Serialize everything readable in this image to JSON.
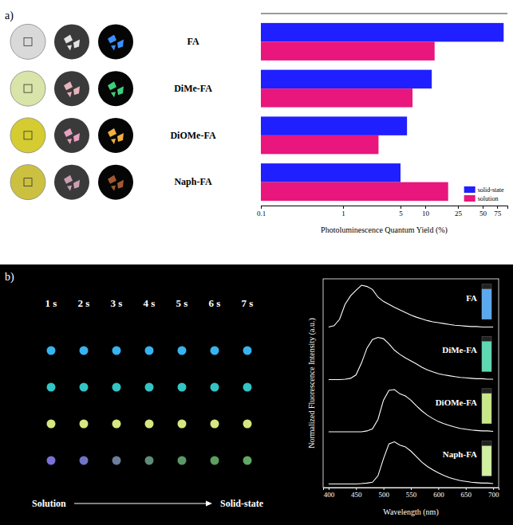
{
  "panel_labels": [
    "a)",
    "b)"
  ],
  "photos": [
    {
      "powder": "#d9d9d9",
      "daylight": "#e4e4e4",
      "emission": "#3d8fff"
    },
    {
      "powder": "#d8e4a8",
      "daylight": "#e6b4bc",
      "emission": "#3fcf7c"
    },
    {
      "powder": "#d4cc30",
      "daylight": "#e8a0c0",
      "emission": "#f0b040"
    },
    {
      "powder": "#ccc040",
      "daylight": "#c8a0b0",
      "emission": "#a05a30"
    }
  ],
  "dot_grid": {
    "times": [
      "1 s",
      "2 s",
      "3 s",
      "4 s",
      "5 s",
      "6 s",
      "7 s"
    ],
    "colors": [
      [
        "#35b4ef",
        "#35b4ef",
        "#35b4ef",
        "#35b4ef",
        "#35b4ef",
        "#35b4ef",
        "#35b4ef"
      ],
      [
        "#33c4c6",
        "#33c4c6",
        "#33c4c6",
        "#33c4c6",
        "#33c4c6",
        "#33c4c6",
        "#33c4c6"
      ],
      [
        "#d6e680",
        "#d6e680",
        "#d6e680",
        "#d6e680",
        "#d6e680",
        "#d6e680",
        "#d6e680"
      ],
      [
        "#7a70d8",
        "#7074c4",
        "#6c7e9c",
        "#5e8c78",
        "#5c9866",
        "#5ca05e",
        "#62a864"
      ]
    ],
    "from": "Solution",
    "to": "Solid-state"
  },
  "vials": [
    "#5aa8f0",
    "#5ed8b0",
    "#c8e888",
    "#d0f0a0"
  ],
  "chart_data": [
    {
      "type": "bar",
      "orientation": "horizontal",
      "categories": [
        "FA",
        "DiMe-FA",
        "DiOMe-FA",
        "Naph-FA"
      ],
      "series": [
        {
          "name": "solid-state",
          "color": "#1f1fff",
          "values": [
            90,
            12,
            6,
            5
          ]
        },
        {
          "name": "solution",
          "color": "#e8167d",
          "values": [
            13,
            7,
            2.7,
            19
          ]
        }
      ],
      "xlabel": "Photoluminescence Quantum Yield (%)",
      "log": "x",
      "xlim": [
        0.1,
        100
      ],
      "xticks": [
        0.1,
        1,
        5,
        10,
        25,
        50,
        75
      ],
      "legend": "bottom-right"
    },
    {
      "type": "line",
      "xlabel": "Wavelength (nm)",
      "ylabel": "Normalized Fluorescence Intensity (a.u.)",
      "x": [
        400,
        410,
        420,
        430,
        440,
        450,
        460,
        470,
        480,
        490,
        500,
        510,
        520,
        530,
        540,
        550,
        560,
        570,
        580,
        590,
        600,
        610,
        620,
        630,
        640,
        650,
        660,
        670,
        680,
        690,
        700
      ],
      "xlim": [
        390,
        710
      ],
      "xticks": [
        400,
        450,
        500,
        550,
        600,
        650,
        700
      ],
      "ylim": [
        0,
        1
      ],
      "tick_labels": "x",
      "series": [
        {
          "name": "FA",
          "color": "#ffffff",
          "values": [
            0.02,
            0.05,
            0.2,
            0.55,
            0.75,
            0.88,
            1.0,
            0.97,
            0.9,
            0.72,
            0.62,
            0.55,
            0.48,
            0.42,
            0.36,
            0.3,
            0.25,
            0.21,
            0.17,
            0.14,
            0.12,
            0.1,
            0.08,
            0.06,
            0.05,
            0.04,
            0.03,
            0.03,
            0.02,
            0.02,
            0.02
          ]
        },
        {
          "name": "DiMe-FA",
          "color": "#ffffff",
          "values": [
            0.01,
            0.01,
            0.01,
            0.02,
            0.04,
            0.12,
            0.4,
            0.75,
            0.95,
            1.0,
            0.97,
            0.85,
            0.7,
            0.6,
            0.52,
            0.45,
            0.38,
            0.3,
            0.24,
            0.19,
            0.15,
            0.12,
            0.1,
            0.08,
            0.06,
            0.05,
            0.04,
            0.03,
            0.03,
            0.02,
            0.02
          ]
        },
        {
          "name": "DiOMe-FA",
          "color": "#ffffff",
          "values": [
            0.01,
            0.01,
            0.01,
            0.01,
            0.01,
            0.01,
            0.01,
            0.03,
            0.08,
            0.3,
            0.75,
            0.98,
            1.0,
            0.9,
            0.85,
            0.75,
            0.62,
            0.5,
            0.4,
            0.32,
            0.25,
            0.2,
            0.16,
            0.12,
            0.09,
            0.07,
            0.05,
            0.04,
            0.03,
            0.03,
            0.02
          ]
        },
        {
          "name": "Naph-FA",
          "color": "#ffffff",
          "values": [
            0.01,
            0.01,
            0.01,
            0.01,
            0.01,
            0.01,
            0.02,
            0.03,
            0.05,
            0.2,
            0.6,
            0.95,
            1.0,
            0.92,
            0.88,
            0.78,
            0.65,
            0.52,
            0.42,
            0.34,
            0.27,
            0.21,
            0.16,
            0.12,
            0.09,
            0.07,
            0.05,
            0.04,
            0.03,
            0.03,
            0.02
          ]
        }
      ]
    }
  ]
}
